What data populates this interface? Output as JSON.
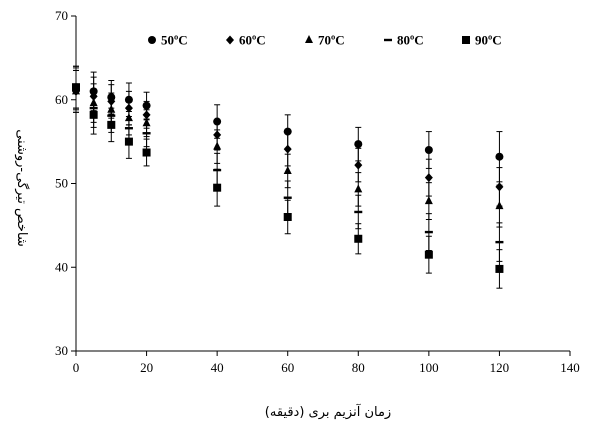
{
  "chart_data": {
    "type": "scatter",
    "xlabel": "زمان آنزیم بری (دقیقه)",
    "ylabel": "شاخص تیرگی-روشنی",
    "xlim": [
      0,
      140
    ],
    "ylim": [
      30,
      70
    ],
    "x_ticks": [
      0,
      20,
      40,
      60,
      80,
      100,
      120,
      140
    ],
    "y_ticks": [
      30,
      40,
      50,
      60,
      70
    ],
    "x_tick_labels": [
      "0",
      "20",
      "40",
      "60",
      "80",
      "100",
      "120",
      "140"
    ],
    "y_tick_labels": [
      "30",
      "40",
      "50",
      "60",
      "70"
    ],
    "grid": false,
    "legend_position": "top",
    "error_bars": true,
    "x": [
      0,
      5,
      10,
      15,
      20,
      40,
      60,
      80,
      100,
      120
    ],
    "series": [
      {
        "name": "50ºC",
        "marker": "circle",
        "values": [
          61.5,
          61.0,
          60.3,
          60.0,
          59.3,
          57.4,
          56.2,
          54.7,
          54.0,
          53.2
        ],
        "errors": [
          2.5,
          2.3,
          2.0,
          2.0,
          1.6,
          2.0,
          2.0,
          2.0,
          2.2,
          3.0
        ]
      },
      {
        "name": "60ºC",
        "marker": "diamond",
        "values": [
          61.0,
          60.4,
          59.8,
          59.0,
          58.2,
          55.8,
          54.1,
          52.2,
          50.7,
          49.6
        ],
        "errors": [
          2.5,
          2.3,
          2.0,
          2.0,
          1.6,
          1.8,
          2.0,
          2.0,
          2.2,
          2.3
        ]
      },
      {
        "name": "70ºC",
        "marker": "triangle",
        "values": [
          61.0,
          59.6,
          58.8,
          57.8,
          57.2,
          54.4,
          51.5,
          49.3,
          47.9,
          47.3
        ],
        "errors": [
          2.5,
          2.3,
          2.0,
          2.0,
          1.6,
          2.0,
          2.0,
          2.0,
          2.2,
          2.5
        ]
      },
      {
        "name": "80ºC",
        "marker": "dash",
        "values": [
          61.3,
          59.0,
          58.1,
          56.6,
          56.0,
          51.6,
          48.3,
          46.6,
          44.2,
          43.0
        ],
        "errors": [
          2.5,
          2.3,
          2.0,
          2.0,
          1.6,
          2.0,
          2.0,
          2.0,
          2.2,
          2.3
        ]
      },
      {
        "name": "90ºC",
        "marker": "square",
        "values": [
          61.5,
          58.2,
          57.0,
          55.0,
          53.7,
          49.5,
          46.0,
          43.4,
          41.5,
          39.8
        ],
        "errors": [
          2.5,
          2.3,
          2.0,
          2.0,
          1.6,
          2.2,
          2.0,
          1.8,
          2.2,
          2.3
        ]
      }
    ]
  }
}
